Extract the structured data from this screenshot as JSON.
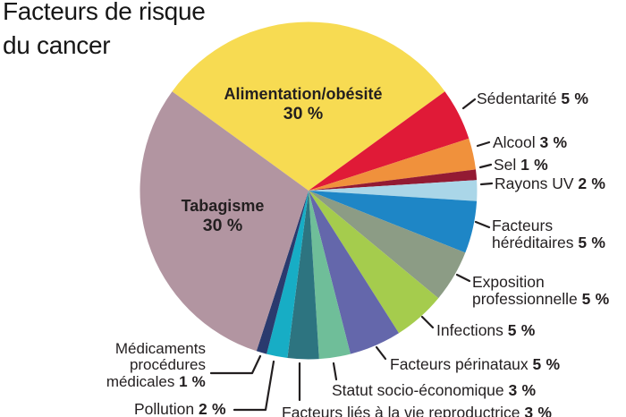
{
  "title": {
    "line1": "Facteurs de risque",
    "line2": "du cancer"
  },
  "chart_data": {
    "type": "pie",
    "title": "Facteurs de risque du cancer",
    "units": "%",
    "start_angle_deg": -54,
    "direction": "clockwise",
    "legend": "none",
    "segments": [
      {
        "label": "Alimentation/obésité",
        "value": 30,
        "pct_display": "30 %",
        "color": "#F7DB52",
        "label_position": "inside"
      },
      {
        "label": "Sédentarité",
        "value": 5,
        "pct_display": "5 %",
        "color": "#E01A37",
        "label_position": "outside"
      },
      {
        "label": "Alcool",
        "value": 3,
        "pct_display": "3 %",
        "color": "#F0913C",
        "label_position": "outside"
      },
      {
        "label": "Sel",
        "value": 1,
        "pct_display": "1 %",
        "color": "#931A33",
        "label_position": "outside"
      },
      {
        "label": "Rayons UV",
        "value": 2,
        "pct_display": "2 %",
        "color": "#AAD6E8",
        "label_position": "outside"
      },
      {
        "label": "Facteurs héréditaires",
        "value": 5,
        "pct_display": "5 %",
        "color": "#1E86C6",
        "label_position": "outside"
      },
      {
        "label": "Exposition professionnelle",
        "value": 5,
        "pct_display": "5 %",
        "color": "#8C9C85",
        "label_position": "outside"
      },
      {
        "label": "Infections",
        "value": 5,
        "pct_display": "5 %",
        "color": "#A5CC4D",
        "label_position": "outside"
      },
      {
        "label": "Facteurs périnataux",
        "value": 5,
        "pct_display": "5 %",
        "color": "#6467AB",
        "label_position": "outside"
      },
      {
        "label": "Statut socio-économique",
        "value": 3,
        "pct_display": "3 %",
        "color": "#6FBE99",
        "label_position": "outside"
      },
      {
        "label": "Facteurs liés à la vie reproductrice",
        "value": 3,
        "pct_display": "3 %",
        "color": "#2D7480",
        "label_position": "outside"
      },
      {
        "label": "Pollution",
        "value": 2,
        "pct_display": "2 %",
        "color": "#17ADC5",
        "label_position": "outside"
      },
      {
        "label": "Médicaments procédures médicales",
        "value": 1,
        "pct_display": "1 %",
        "color": "#2A3A6E",
        "label_position": "outside"
      },
      {
        "label": "Tabagisme",
        "value": 30,
        "pct_display": "30 %",
        "color": "#B295A1",
        "label_position": "inside"
      }
    ]
  }
}
